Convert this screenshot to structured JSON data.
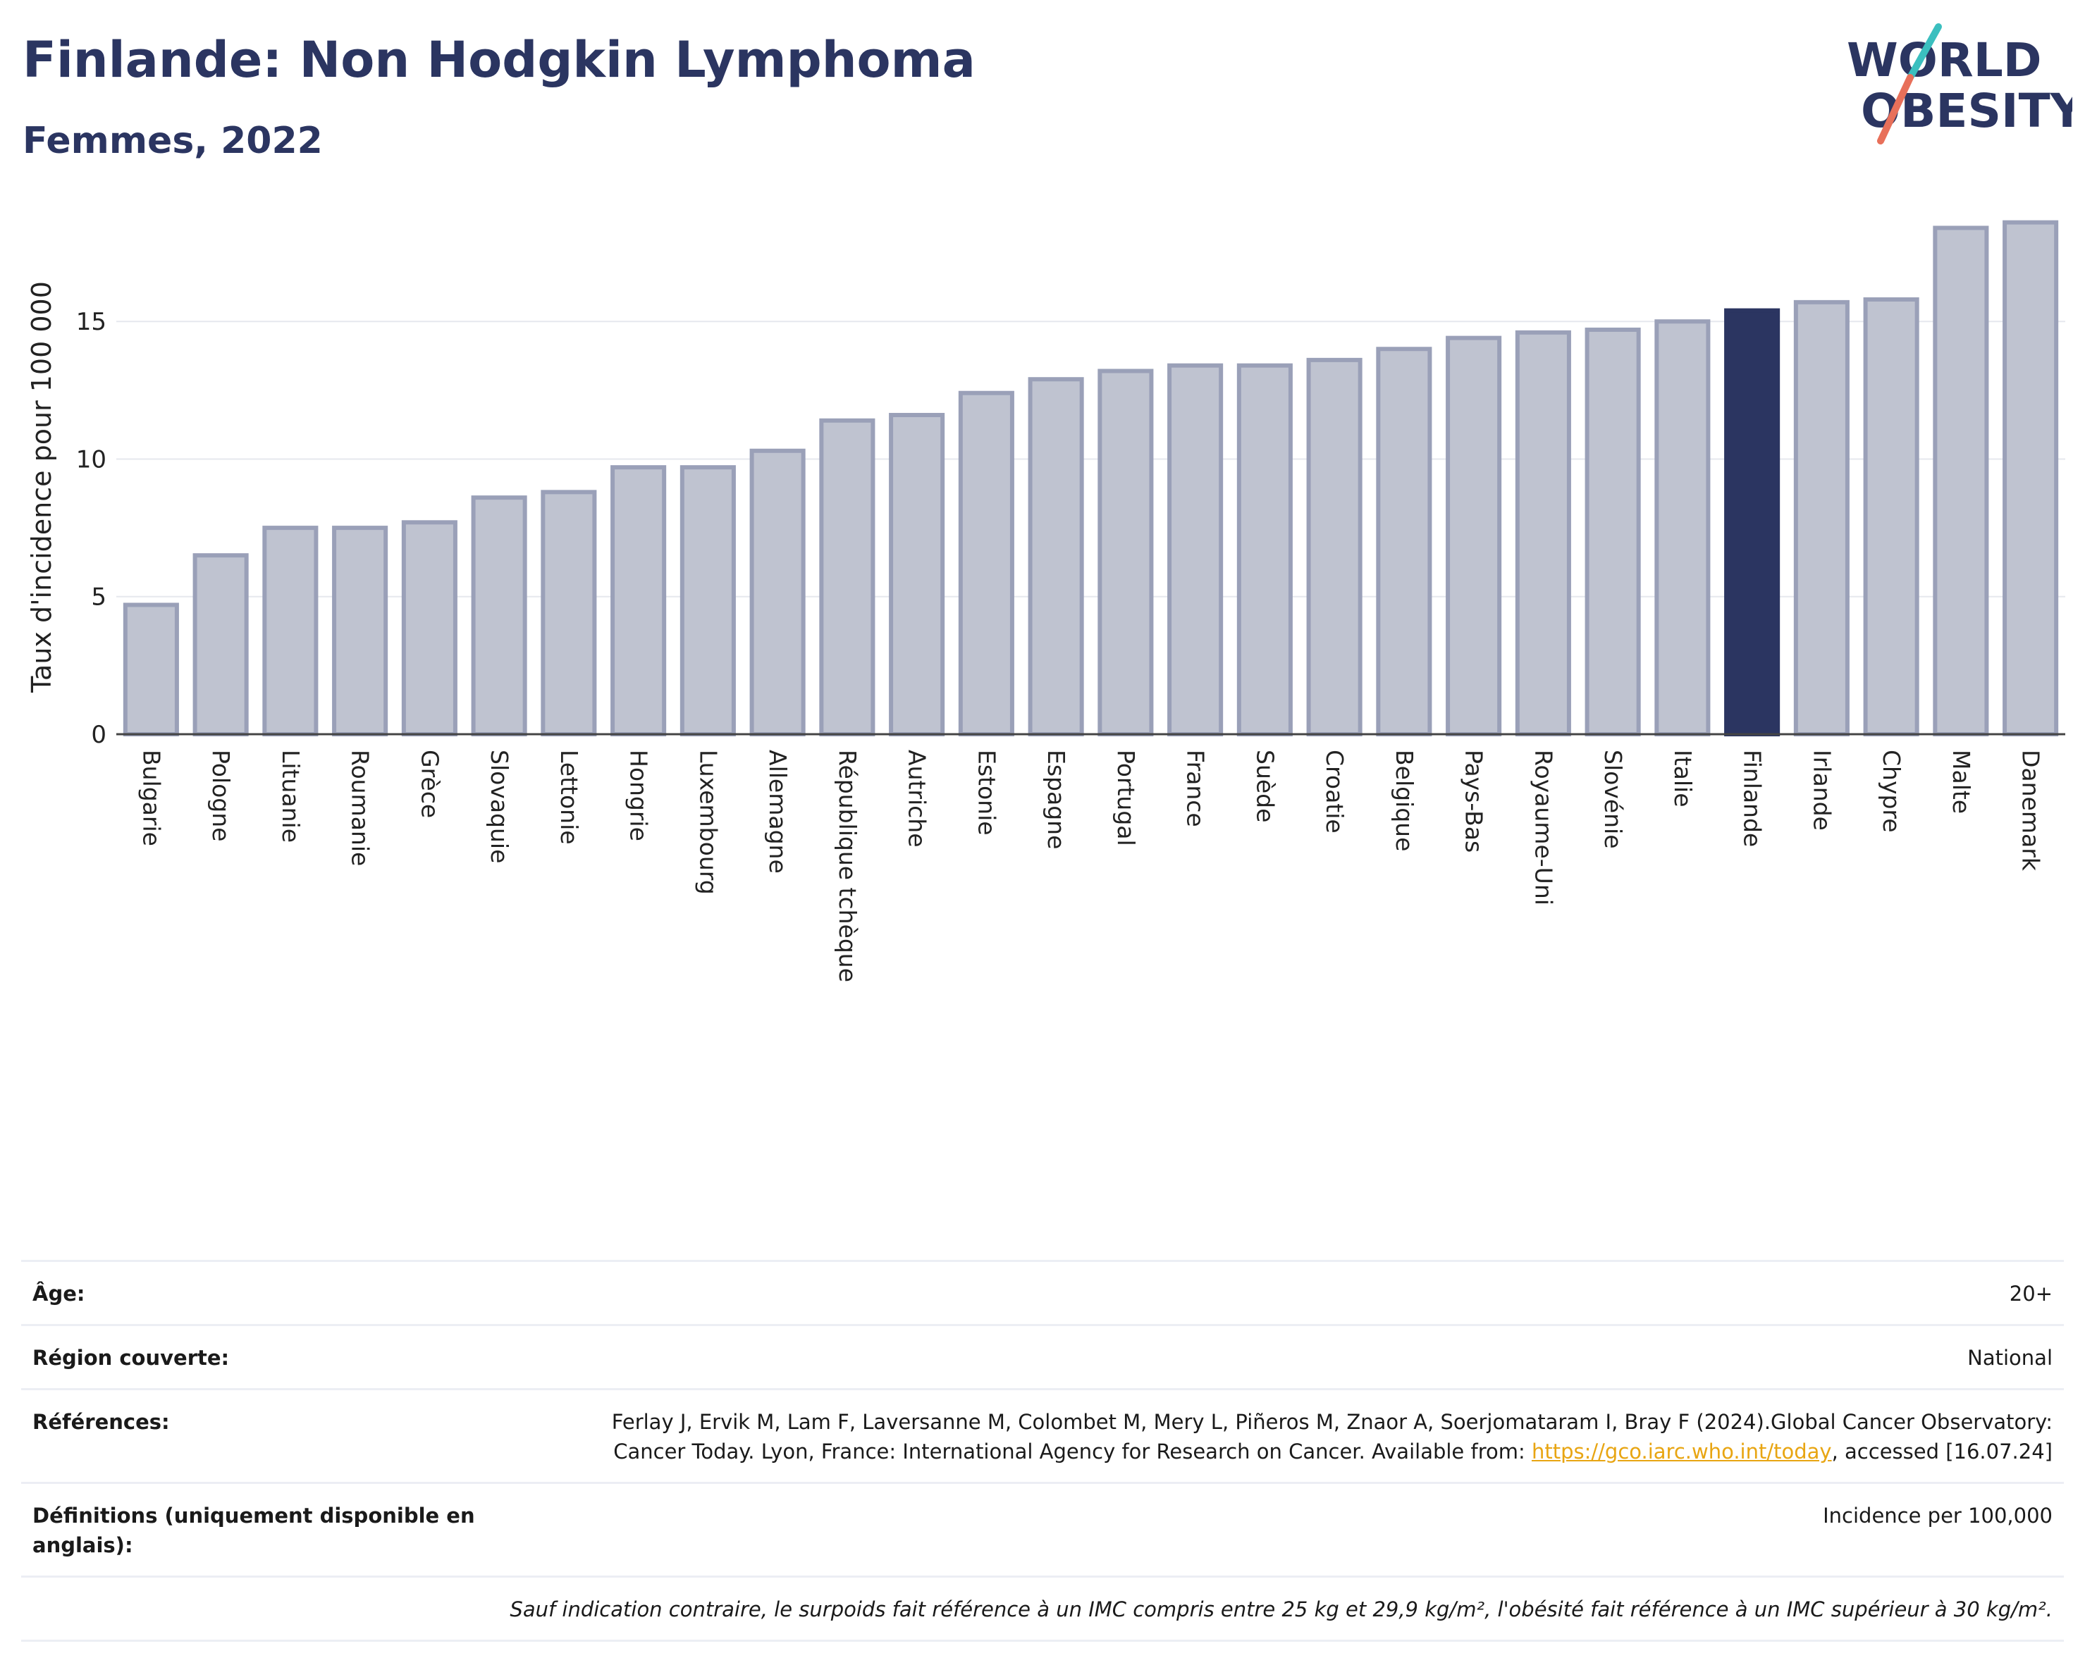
{
  "header": {
    "title": "Finlande: Non Hodgkin Lymphoma",
    "subtitle": "Femmes, 2022",
    "logo_line1": "WORLD",
    "logo_line2": "OBESITY"
  },
  "chart_data": {
    "type": "bar",
    "title": "Finlande: Non Hodgkin Lymphoma",
    "subtitle": "Femmes, 2022",
    "xlabel": "",
    "ylabel": "Taux d'incidence pour 100 000",
    "ylim": [
      0,
      19
    ],
    "yticks": [
      "0",
      "5",
      "10",
      "15"
    ],
    "grid": true,
    "highlight": "Finlande",
    "categories": [
      "Bulgarie",
      "Pologne",
      "Lituanie",
      "Roumanie",
      "Grèce",
      "Slovaquie",
      "Lettonie",
      "Hongrie",
      "Luxembourg",
      "Allemagne",
      "République tchèque",
      "Autriche",
      "Estonie",
      "Espagne",
      "Portugal",
      "France",
      "Suède",
      "Croatie",
      "Belgique",
      "Pays-Bas",
      "Royaume-Uni",
      "Slovénie",
      "Italie",
      "Finlande",
      "Irlande",
      "Chypre",
      "Malte",
      "Danemark"
    ],
    "values": [
      4.7,
      6.5,
      7.5,
      7.5,
      7.7,
      8.6,
      8.8,
      9.7,
      9.7,
      10.3,
      11.4,
      11.6,
      12.4,
      12.9,
      13.2,
      13.4,
      13.4,
      13.6,
      14.0,
      14.4,
      14.6,
      14.7,
      15.0,
      15.4,
      15.7,
      15.8,
      18.4,
      18.6
    ]
  },
  "colors": {
    "bar": "#bfc3d0",
    "bar_border": "#9aa0b8",
    "highlight": "#2b3561",
    "grid": "#e6e8ee",
    "axis": "#444444"
  },
  "meta": {
    "age_label": "Âge:",
    "age_value": "20+",
    "region_label": "Région couverte:",
    "region_value": "National",
    "refs_label": "Références:",
    "refs_value_1": "Ferlay J, Ervik M, Lam F, Laversanne M, Colombet M, Mery L, Piñeros M, Znaor A, Soerjomataram I, Bray F (2024).Global Cancer Observatory: Cancer Today. Lyon, France: International Agency for Research on Cancer. Available from: ",
    "refs_link": "https://gco.iarc.who.int/today",
    "refs_value_2": ", accessed [16.07.24]",
    "defs_label": "Définitions (uniquement disponible en anglais):",
    "defs_value": "Incidence per 100,000",
    "note": "Sauf indication contraire, le surpoids fait référence à un IMC compris entre 25 kg et 29,9 kg/m², l'obésité fait référence à un IMC supérieur à 30 kg/m²."
  }
}
